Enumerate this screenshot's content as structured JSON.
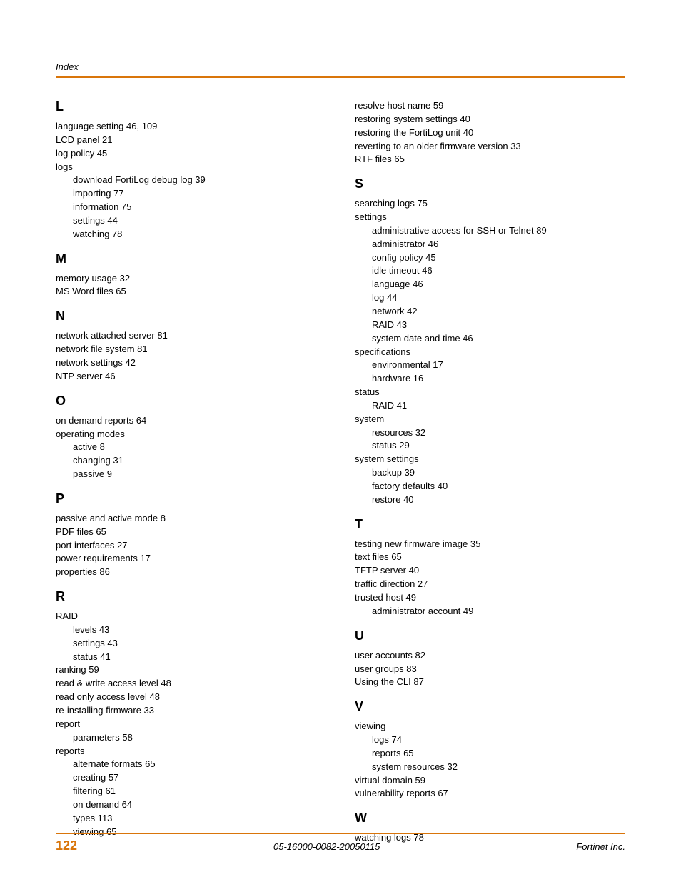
{
  "header": "Index",
  "footer": {
    "page": "122",
    "docid": "05-16000-0082-20050115",
    "company": "Fortinet Inc."
  },
  "left": {
    "L": {
      "entries": [
        {
          "t": "language setting 46, 109"
        },
        {
          "t": "LCD panel 21"
        },
        {
          "t": "log policy 45"
        },
        {
          "t": "logs",
          "sub": [
            "download FortiLog debug log 39",
            "importing 77",
            "information 75",
            "settings 44",
            "watching 78"
          ]
        }
      ]
    },
    "M": {
      "entries": [
        {
          "t": "memory usage 32"
        },
        {
          "t": "MS Word files 65"
        }
      ]
    },
    "N": {
      "entries": [
        {
          "t": "network attached server 81"
        },
        {
          "t": "network file system 81"
        },
        {
          "t": "network settings 42"
        },
        {
          "t": "NTP server 46"
        }
      ]
    },
    "O": {
      "entries": [
        {
          "t": "on demand reports 64"
        },
        {
          "t": "operating modes",
          "sub": [
            "active 8",
            "changing 31",
            "passive 9"
          ]
        }
      ]
    },
    "P": {
      "entries": [
        {
          "t": "passive and active mode 8"
        },
        {
          "t": "PDF files 65"
        },
        {
          "t": "port interfaces 27"
        },
        {
          "t": "power requirements 17"
        },
        {
          "t": "properties 86"
        }
      ]
    },
    "R": {
      "entries": [
        {
          "t": "RAID",
          "sub": [
            "levels 43",
            "settings 43",
            "status 41"
          ]
        },
        {
          "t": "ranking 59"
        },
        {
          "t": "read & write access level 48"
        },
        {
          "t": "read only access level 48"
        },
        {
          "t": "re-installing firmware 33"
        },
        {
          "t": "report",
          "sub": [
            "parameters 58"
          ]
        },
        {
          "t": "reports",
          "sub": [
            "alternate formats 65",
            "creating 57",
            "filtering 61",
            "on demand 64",
            "types 113",
            "viewing 65"
          ]
        }
      ]
    }
  },
  "right": {
    "_pre": [
      "resolve host name 59",
      "restoring system settings 40",
      "restoring the FortiLog unit 40",
      "reverting to an older firmware version 33",
      "RTF files 65"
    ],
    "S": {
      "entries": [
        {
          "t": "searching logs 75"
        },
        {
          "t": "settings",
          "sub": [
            "administrative access for SSH or Telnet 89",
            "administrator 46",
            "config policy 45",
            "idle timeout 46",
            "language 46",
            "log 44",
            "network 42",
            "RAID 43",
            "system date and time 46"
          ]
        },
        {
          "t": "specifications",
          "sub": [
            "environmental 17",
            "hardware 16"
          ]
        },
        {
          "t": "status",
          "sub": [
            "RAID 41"
          ]
        },
        {
          "t": "system",
          "sub": [
            "resources 32",
            "status 29"
          ]
        },
        {
          "t": "system settings",
          "sub": [
            "backup 39",
            "factory defaults 40",
            "restore 40"
          ]
        }
      ]
    },
    "T": {
      "entries": [
        {
          "t": "testing new firmware image 35"
        },
        {
          "t": "text files 65"
        },
        {
          "t": "TFTP server 40"
        },
        {
          "t": "traffic direction 27"
        },
        {
          "t": "trusted host 49",
          "sub": [
            "administrator account 49"
          ]
        }
      ]
    },
    "U": {
      "entries": [
        {
          "t": "user accounts 82"
        },
        {
          "t": "user groups 83"
        },
        {
          "t": "Using the CLI 87"
        }
      ]
    },
    "V": {
      "entries": [
        {
          "t": "viewing",
          "sub": [
            "logs 74",
            "reports 65",
            "system resources 32"
          ]
        },
        {
          "t": "virtual domain 59"
        },
        {
          "t": "vulnerability reports 67"
        }
      ]
    },
    "W": {
      "entries": [
        {
          "t": "watching logs 78"
        }
      ]
    }
  }
}
